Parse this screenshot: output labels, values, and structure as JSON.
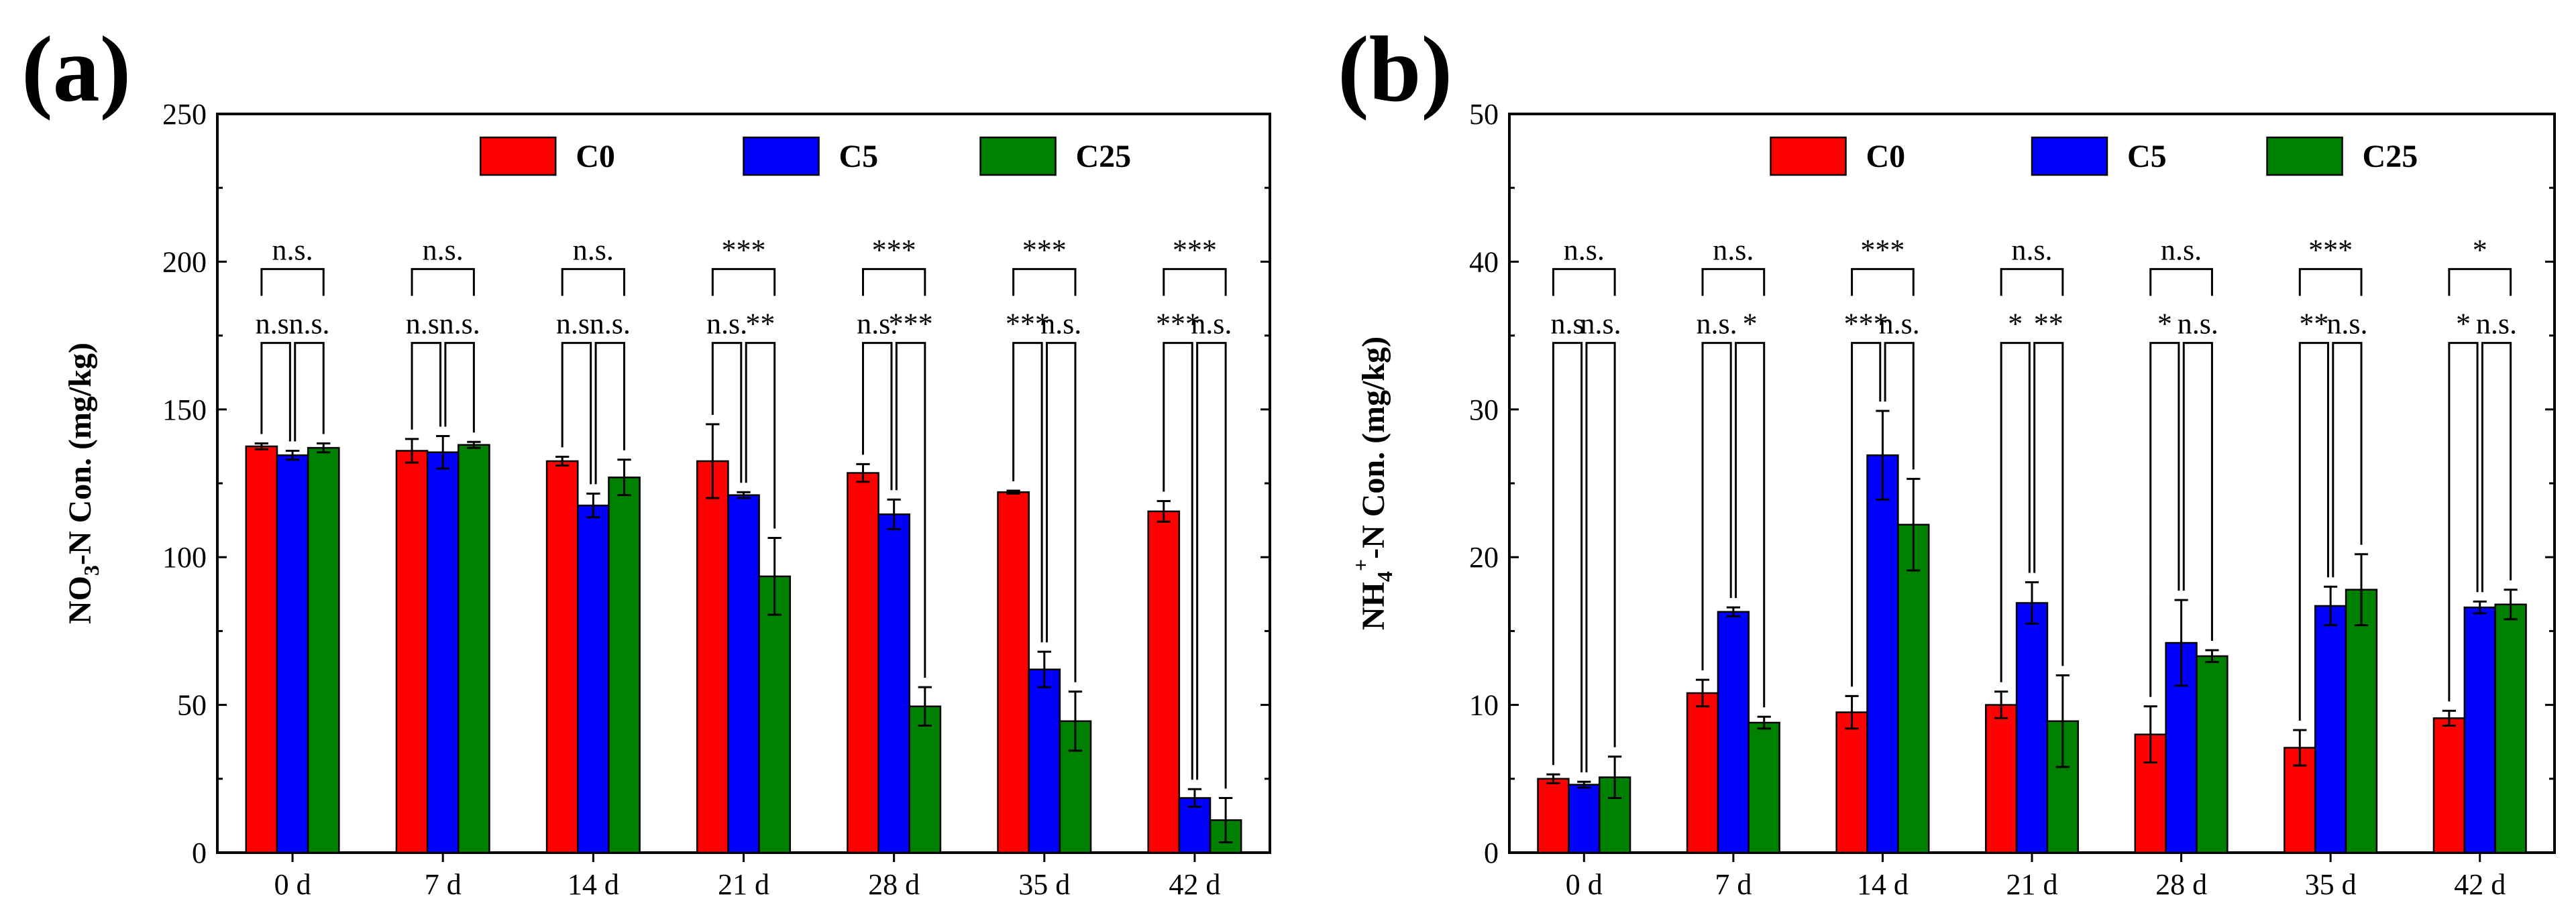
{
  "figure": {
    "panel_labels": [
      "(a)",
      "(b)"
    ],
    "colors": {
      "C0": "#ff0000",
      "C5": "#0000ff",
      "C25": "#008000"
    }
  },
  "chart_data": [
    {
      "type": "bar",
      "panel": "(a)",
      "title": "",
      "xlabel": "",
      "ylabel": "NO3-N Con. (mg/kg)",
      "ylabel_parts": [
        "NO",
        "3",
        "-N Con. (mg/kg)"
      ],
      "ylim": [
        0,
        250
      ],
      "yticks": [
        0,
        50,
        100,
        150,
        200,
        250
      ],
      "categories": [
        "0 d",
        "7 d",
        "14 d",
        "21 d",
        "28 d",
        "35 d",
        "42 d"
      ],
      "legend": {
        "position": "top",
        "entries": [
          "C0",
          "C5",
          "C25"
        ]
      },
      "series": [
        {
          "name": "C0",
          "values": [
            137.5,
            136,
            132.5,
            132.5,
            128.5,
            122,
            115.5
          ],
          "errors": [
            1,
            4,
            1.5,
            12.5,
            3,
            0.5,
            3.5
          ]
        },
        {
          "name": "C5",
          "values": [
            134.5,
            135.5,
            117.5,
            121,
            114.5,
            62,
            18.5
          ],
          "errors": [
            1.5,
            5.5,
            4,
            1,
            5,
            6,
            3
          ]
        },
        {
          "name": "C25",
          "values": [
            137,
            138,
            127,
            93.5,
            49.5,
            44.5,
            11
          ],
          "errors": [
            1.5,
            1,
            6,
            13,
            6.5,
            10,
            7.5
          ]
        }
      ],
      "significance": [
        {
          "category": "0 d",
          "C0_vs_C25": "n.s.",
          "C0_vs_C5": "n.s.",
          "C5_vs_C25": "n.s."
        },
        {
          "category": "7 d",
          "C0_vs_C25": "n.s.",
          "C0_vs_C5": "n.s.",
          "C5_vs_C25": "n.s."
        },
        {
          "category": "14 d",
          "C0_vs_C25": "n.s.",
          "C0_vs_C5": "n.s.",
          "C5_vs_C25": "n.s."
        },
        {
          "category": "21 d",
          "C0_vs_C25": "***",
          "C0_vs_C5": "n.s.",
          "C5_vs_C25": "**"
        },
        {
          "category": "28 d",
          "C0_vs_C25": "***",
          "C0_vs_C5": "n.s.",
          "C5_vs_C25": "***"
        },
        {
          "category": "35 d",
          "C0_vs_C25": "***",
          "C0_vs_C5": "***",
          "C5_vs_C25": "n.s."
        },
        {
          "category": "42 d",
          "C0_vs_C25": "***",
          "C0_vs_C5": "***",
          "C5_vs_C25": "n.s."
        }
      ]
    },
    {
      "type": "bar",
      "panel": "(b)",
      "title": "",
      "xlabel": "",
      "ylabel": "NH4+-N Con. (mg/kg)",
      "ylabel_parts": [
        "NH",
        "4",
        "+",
        "-N Con. (mg/kg)"
      ],
      "ylim": [
        0,
        50
      ],
      "yticks": [
        0,
        10,
        20,
        30,
        40,
        50
      ],
      "categories": [
        "0 d",
        "7 d",
        "14 d",
        "21 d",
        "28 d",
        "35 d",
        "42 d"
      ],
      "legend": {
        "position": "top",
        "entries": [
          "C0",
          "C5",
          "C25"
        ]
      },
      "series": [
        {
          "name": "C0",
          "values": [
            5,
            10.8,
            9.5,
            10,
            8,
            7.1,
            9.1
          ],
          "errors": [
            0.3,
            0.9,
            1.1,
            0.9,
            1.9,
            1.2,
            0.5
          ]
        },
        {
          "name": "C5",
          "values": [
            4.6,
            16.3,
            26.9,
            16.9,
            14.2,
            16.7,
            16.6
          ],
          "errors": [
            0.2,
            0.3,
            3,
            1.4,
            2.9,
            1.3,
            0.4
          ]
        },
        {
          "name": "C25",
          "values": [
            5.1,
            8.8,
            22.2,
            8.9,
            13.3,
            17.8,
            16.8
          ],
          "errors": [
            1.4,
            0.4,
            3.1,
            3.1,
            0.4,
            2.4,
            1
          ]
        }
      ],
      "significance": [
        {
          "category": "0 d",
          "C0_vs_C25": "n.s.",
          "C0_vs_C5": "n.s",
          "C5_vs_C25": "n.s."
        },
        {
          "category": "7 d",
          "C0_vs_C25": "n.s.",
          "C0_vs_C5": "n.s.",
          "C5_vs_C25": "*"
        },
        {
          "category": "14 d",
          "C0_vs_C25": "***",
          "C0_vs_C5": "***",
          "C5_vs_C25": "n.s."
        },
        {
          "category": "21 d",
          "C0_vs_C25": "n.s.",
          "C0_vs_C5": "*",
          "C5_vs_C25": "**"
        },
        {
          "category": "28 d",
          "C0_vs_C25": "n.s.",
          "C0_vs_C5": "*",
          "C5_vs_C25": "n.s."
        },
        {
          "category": "35 d",
          "C0_vs_C25": "***",
          "C0_vs_C5": "**",
          "C5_vs_C25": "n.s."
        },
        {
          "category": "42 d",
          "C0_vs_C25": "*",
          "C0_vs_C5": "*",
          "C5_vs_C25": "n.s."
        }
      ]
    }
  ]
}
